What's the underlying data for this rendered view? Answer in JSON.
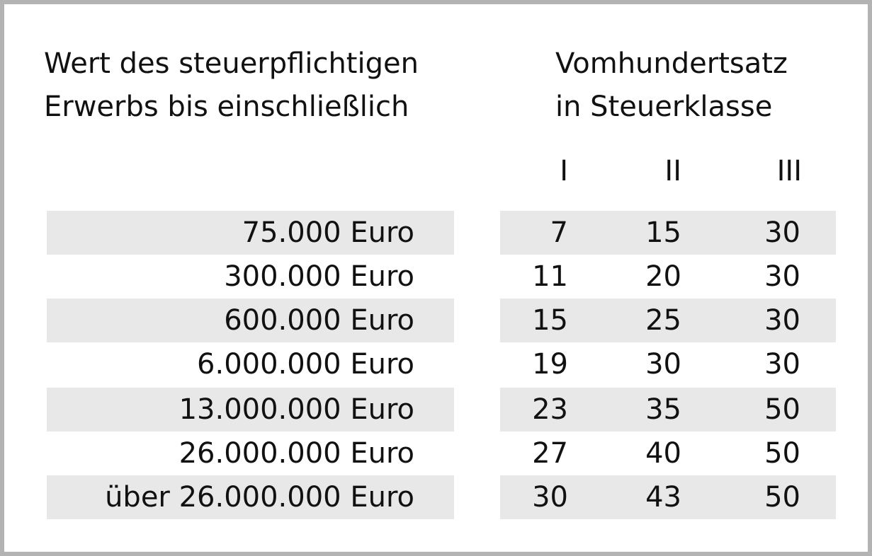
{
  "header": {
    "left_line1": "Wert des steuerpflichtigen",
    "left_line2": "Erwerbs bis einschließlich",
    "right_line1": "Vomhundertsatz",
    "right_line2": "in Steuerklasse"
  },
  "tax_classes": [
    "I",
    "II",
    "III"
  ],
  "rows": [
    {
      "amount": "75.000 Euro",
      "I": "7",
      "II": "15",
      "III": "30"
    },
    {
      "amount": "300.000 Euro",
      "I": "11",
      "II": "20",
      "III": "30"
    },
    {
      "amount": "600.000 Euro",
      "I": "15",
      "II": "25",
      "III": "30"
    },
    {
      "amount": "6.000.000 Euro",
      "I": "19",
      "II": "30",
      "III": "30"
    },
    {
      "amount": "13.000.000 Euro",
      "I": "23",
      "II": "35",
      "III": "50"
    },
    {
      "amount": "26.000.000 Euro",
      "I": "27",
      "II": "40",
      "III": "50"
    },
    {
      "amount": "über 26.000.000 Euro",
      "I": "30",
      "II": "43",
      "III": "50"
    }
  ],
  "colors": {
    "border": "#b3b3b3",
    "row_shade": "#e8e8e8",
    "text": "#111111",
    "background": "#ffffff"
  }
}
